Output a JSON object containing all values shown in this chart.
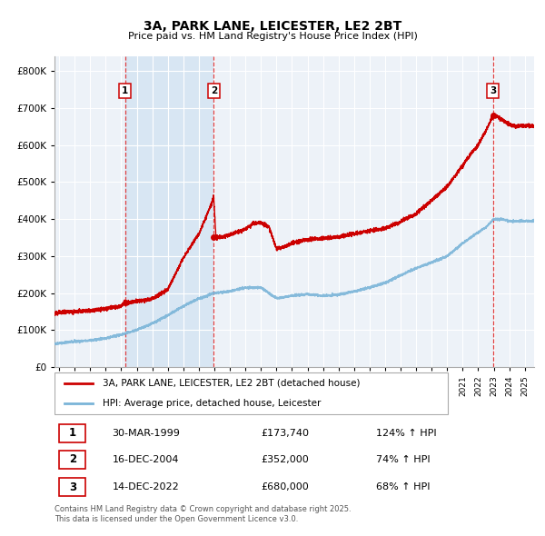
{
  "title": "3A, PARK LANE, LEICESTER, LE2 2BT",
  "subtitle": "Price paid vs. HM Land Registry's House Price Index (HPI)",
  "legend_line1": "3A, PARK LANE, LEICESTER, LE2 2BT (detached house)",
  "legend_line2": "HPI: Average price, detached house, Leicester",
  "transactions": [
    {
      "label": "1",
      "date": 1999.25,
      "price": 173740,
      "pct": "124%",
      "date_str": "30-MAR-1999"
    },
    {
      "label": "2",
      "date": 2004.96,
      "price": 352000,
      "pct": "74%",
      "date_str": "16-DEC-2004"
    },
    {
      "label": "3",
      "date": 2022.96,
      "price": 680000,
      "pct": "68%",
      "date_str": "14-DEC-2022"
    }
  ],
  "footer": "Contains HM Land Registry data © Crown copyright and database right 2025.\nThis data is licensed under the Open Government Licence v3.0.",
  "hpi_color": "#7ab4d8",
  "price_color": "#cc0000",
  "background_color": "#ffffff",
  "chart_bg_color": "#edf2f8",
  "shaded_region_color": "#d8e6f3",
  "grid_color": "#ffffff",
  "ylim": [
    0,
    840000
  ],
  "xlim_start": 1994.7,
  "xlim_end": 2025.6
}
